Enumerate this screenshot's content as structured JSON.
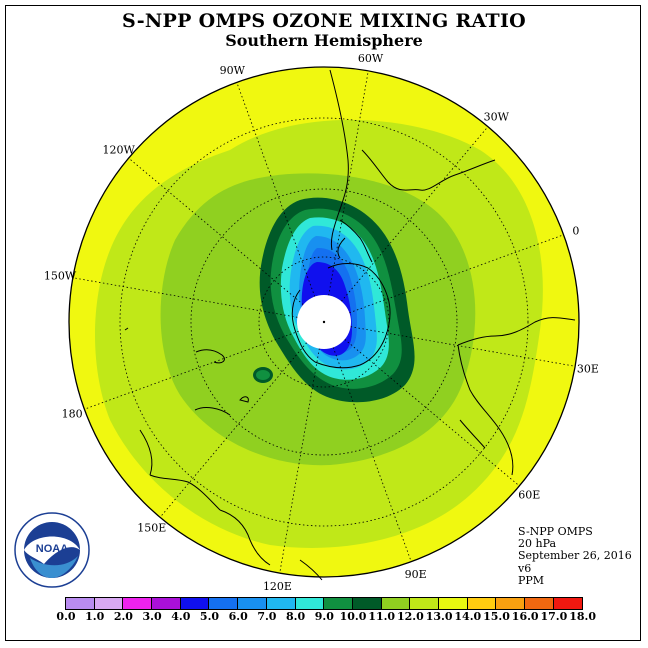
{
  "title": "S-NPP OMPS OZONE MIXING RATIO",
  "subtitle": "Southern Hemisphere",
  "longitude_labels": [
    {
      "text": "90W",
      "lon": -90
    },
    {
      "text": "60W",
      "lon": -60
    },
    {
      "text": "30W",
      "lon": -30
    },
    {
      "text": "0",
      "lon": 0
    },
    {
      "text": "30E",
      "lon": 30
    },
    {
      "text": "60E",
      "lon": 60
    },
    {
      "text": "90E",
      "lon": 90
    },
    {
      "text": "120E",
      "lon": 120
    },
    {
      "text": "150E",
      "lon": 150
    },
    {
      "text": "180",
      "lon": 180
    },
    {
      "text": "150W",
      "lon": -150
    },
    {
      "text": "120W",
      "lon": -120
    }
  ],
  "info": {
    "instrument": "S-NPP OMPS",
    "level": "20 hPa",
    "date": "September 26, 2016",
    "version": "v6",
    "units": "PPM"
  },
  "logo": {
    "text": "NOAA"
  },
  "colorbar": {
    "ticks": [
      "0.0",
      "1.0",
      "2.0",
      "3.0",
      "4.0",
      "5.0",
      "6.0",
      "7.0",
      "8.0",
      "9.0",
      "10.0",
      "11.0",
      "12.0",
      "13.0",
      "14.0",
      "15.0",
      "16.0",
      "17.0",
      "18.0"
    ],
    "colors": [
      "#b98cf0",
      "#d8a8f2",
      "#ee22ee",
      "#aa10d8",
      "#1010ee",
      "#1470f0",
      "#1890f0",
      "#20b8f0",
      "#30e8d8",
      "#109040",
      "#005a28",
      "#90d020",
      "#c0e818",
      "#e8f810",
      "#ffcc10",
      "#f8a010",
      "#f06810",
      "#f01810",
      "#8a5030"
    ]
  },
  "chart_data": {
    "type": "heatmap",
    "title": "S-NPP OMPS OZONE MIXING RATIO",
    "subtitle": "Southern Hemisphere",
    "variable": "Ozone mixing ratio",
    "units": "PPM",
    "pressure_level": "20 hPa",
    "date": "September 26, 2016",
    "version": "v6",
    "projection": "polar stereographic, South Pole centered",
    "scale_min": 0.0,
    "scale_max": 18.0,
    "scale_step": 1.0,
    "regions": [
      {
        "area": "edge of map (lower latitudes)",
        "range": "12.0-13.0"
      },
      {
        "area": "mid latitudes",
        "range": "11.0-12.0"
      },
      {
        "area": "polar vortex collar",
        "range": "10.0-11.0"
      },
      {
        "area": "vortex edge",
        "range": "8.0-10.0"
      },
      {
        "area": "inner vortex",
        "range": "5.0-8.0"
      },
      {
        "area": "vortex core near pole",
        "range": "3.0-5.0"
      }
    ]
  }
}
